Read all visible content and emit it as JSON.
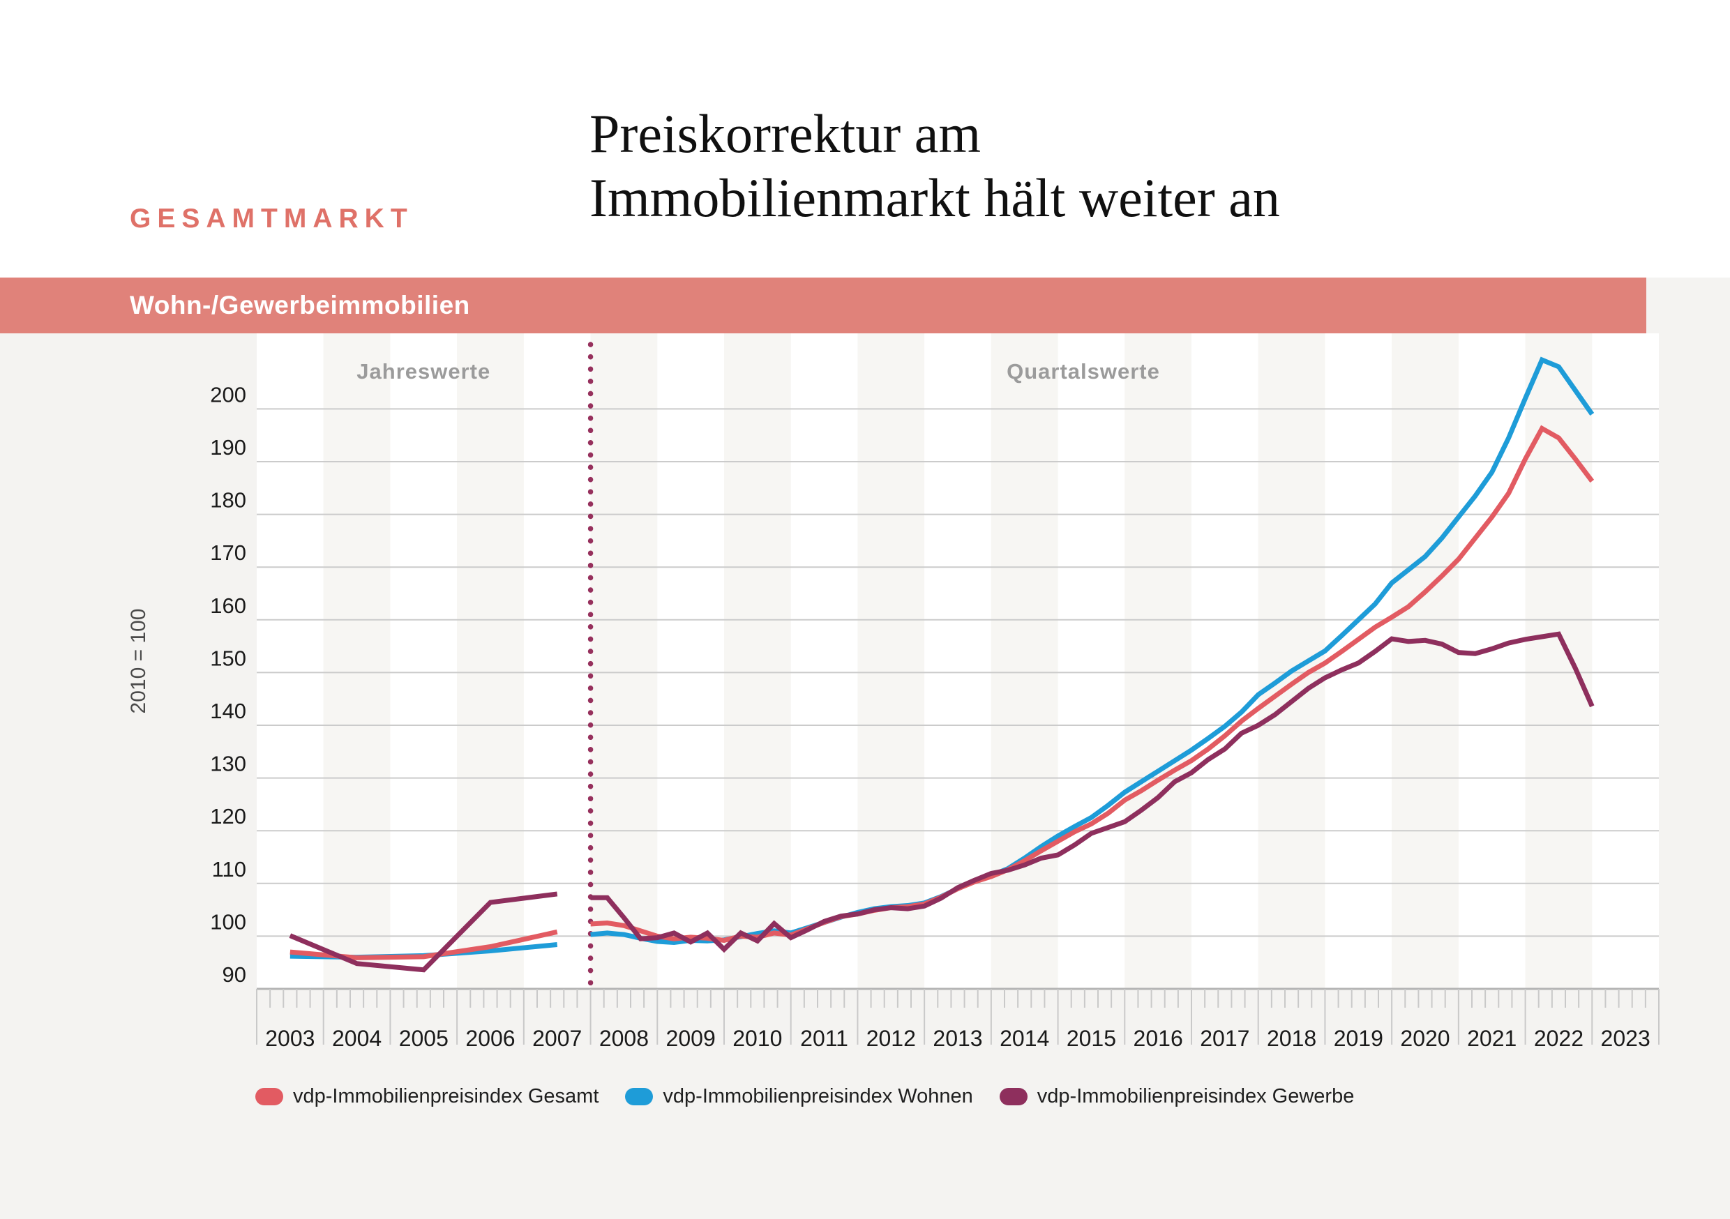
{
  "header": {
    "kicker": "GESAMTMARKT",
    "title_line1": "Preiskorrektur am",
    "title_line2": "Immobilienmarkt hält weiter an"
  },
  "banner": {
    "label": "Wohn-/Gewerbeimmobilien",
    "color": "#e0827a"
  },
  "chart_data": {
    "type": "line",
    "title": "Wohn-/Gewerbeimmobilien",
    "ylabel": "2010 = 100",
    "ylim": [
      90,
      212
    ],
    "yticks": [
      90,
      100,
      110,
      120,
      130,
      140,
      150,
      160,
      170,
      180,
      190,
      200
    ],
    "grid": true,
    "legend_position": "bottom",
    "x_year_labels": [
      "2003",
      "2004",
      "2005",
      "2006",
      "2007",
      "2008",
      "2009",
      "2010",
      "2011",
      "2012",
      "2013",
      "2014",
      "2015",
      "2016",
      "2017",
      "2018",
      "2019",
      "2020",
      "2021",
      "2022",
      "2023"
    ],
    "annual_years": [
      2003,
      2004,
      2005,
      2006,
      2007
    ],
    "quarterly_range": "2008Q1-2023Q1",
    "section_labels": {
      "annual": "Jahreswerte",
      "quarterly": "Quartalswerte"
    },
    "divider": {
      "position": "2008Q1",
      "style": "dotted",
      "color": "#96305c"
    },
    "series": [
      {
        "name": "vdp-Immobilienpreisindex Gesamt",
        "color": "#e25b62",
        "annual": [
          97.0,
          95.9,
          96.1,
          98.0,
          100.8
        ],
        "quarterly": [
          102.3,
          102.5,
          102.0,
          101.0,
          100.0,
          99.5,
          99.8,
          99.6,
          99.2,
          100.0,
          99.8,
          100.6,
          100.2,
          101.4,
          102.6,
          103.7,
          104.2,
          104.9,
          105.4,
          105.6,
          106.1,
          107.4,
          109.0,
          110.3,
          111.3,
          112.6,
          114.3,
          116.2,
          118.0,
          119.8,
          121.3,
          123.3,
          125.8,
          127.6,
          129.6,
          131.5,
          133.3,
          135.5,
          138.0,
          140.8,
          143.2,
          145.5,
          147.8,
          150.0,
          151.8,
          154.0,
          156.3,
          158.6,
          160.5,
          162.5,
          165.3,
          168.3,
          171.5,
          175.5,
          179.5,
          184.0,
          190.5,
          196.3,
          194.5,
          190.5,
          186.3
        ]
      },
      {
        "name": "vdp-Immobilienpreisindex Wohnen",
        "color": "#1e9cd8",
        "annual": [
          96.2,
          96.0,
          96.3,
          97.2,
          98.4
        ],
        "quarterly": [
          100.3,
          100.6,
          100.3,
          99.6,
          99.0,
          98.8,
          99.2,
          99.1,
          99.3,
          99.9,
          100.5,
          101.0,
          100.6,
          101.6,
          102.6,
          103.6,
          104.5,
          105.2,
          105.6,
          105.8,
          106.3,
          107.5,
          109.0,
          110.5,
          111.5,
          112.8,
          114.8,
          117.0,
          119.0,
          120.8,
          122.5,
          124.8,
          127.3,
          129.3,
          131.3,
          133.3,
          135.3,
          137.5,
          139.8,
          142.5,
          145.8,
          148.0,
          150.3,
          152.2,
          154.1,
          157.0,
          160.0,
          163.0,
          167.0,
          169.5,
          172.0,
          175.5,
          179.5,
          183.5,
          188.0,
          194.5,
          202.0,
          209.3,
          208.0,
          203.5,
          199.0
        ]
      },
      {
        "name": "vdp-Immobilienpreisindex Gewerbe",
        "color": "#8e2f5d",
        "annual": [
          100.1,
          94.8,
          93.6,
          106.4,
          108.0
        ],
        "quarterly": [
          107.3,
          107.3,
          103.5,
          99.5,
          99.7,
          100.6,
          98.9,
          100.6,
          97.5,
          100.6,
          99.1,
          102.4,
          99.7,
          101.2,
          102.8,
          103.8,
          104.2,
          105.0,
          105.4,
          105.2,
          105.7,
          107.2,
          109.2,
          110.6,
          111.9,
          112.5,
          113.5,
          114.8,
          115.4,
          117.3,
          119.5,
          120.6,
          121.7,
          123.9,
          126.3,
          129.3,
          131.0,
          133.5,
          135.5,
          138.5,
          140.0,
          142.0,
          144.5,
          147.0,
          149.0,
          150.5,
          151.8,
          154.0,
          156.4,
          155.9,
          156.1,
          155.4,
          153.8,
          153.6,
          154.5,
          155.6,
          156.3,
          156.8,
          157.3,
          150.8,
          143.6
        ]
      }
    ]
  }
}
